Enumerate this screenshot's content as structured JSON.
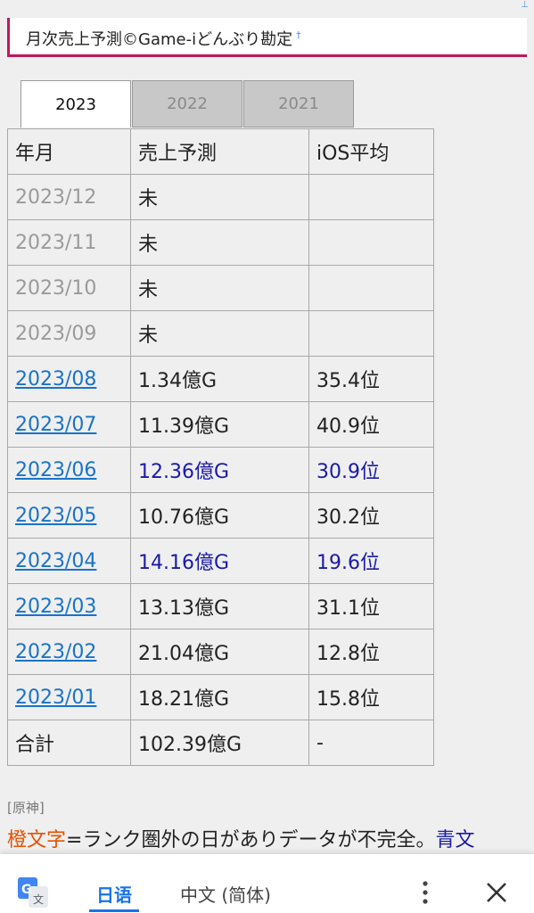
{
  "header": {
    "title": "月次売上予測©Game-iどんぶり勘定",
    "marker": "†"
  },
  "tabs": [
    {
      "label": "2023",
      "active": true
    },
    {
      "label": "2022",
      "active": false
    },
    {
      "label": "2021",
      "active": false
    }
  ],
  "table": {
    "headers": [
      "年月",
      "売上予測",
      "iOS平均"
    ],
    "rows": [
      {
        "month": "2023/12",
        "sales": "未",
        "ios": "",
        "style": "grey"
      },
      {
        "month": "2023/11",
        "sales": "未",
        "ios": "",
        "style": "grey"
      },
      {
        "month": "2023/10",
        "sales": "未",
        "ios": "",
        "style": "grey"
      },
      {
        "month": "2023/09",
        "sales": "未",
        "ios": "",
        "style": "grey"
      },
      {
        "month": "2023/08",
        "sales": "1.34億G",
        "ios": "35.4位",
        "style": "link"
      },
      {
        "month": "2023/07",
        "sales": "11.39億G",
        "ios": "40.9位",
        "style": "link"
      },
      {
        "month": "2023/06",
        "sales": "12.36億G",
        "ios": "30.9位",
        "style": "link-blue"
      },
      {
        "month": "2023/05",
        "sales": "10.76億G",
        "ios": "30.2位",
        "style": "link"
      },
      {
        "month": "2023/04",
        "sales": "14.16億G",
        "ios": "19.6位",
        "style": "link-blue"
      },
      {
        "month": "2023/03",
        "sales": "13.13億G",
        "ios": "31.1位",
        "style": "link"
      },
      {
        "month": "2023/02",
        "sales": "21.04億G",
        "ios": "12.8位",
        "style": "link"
      },
      {
        "month": "2023/01",
        "sales": "18.21億G",
        "ios": "15.8位",
        "style": "link"
      }
    ],
    "total": {
      "label": "合計",
      "sales": "102.39億G",
      "ios": "-"
    }
  },
  "footnote": {
    "tag": "[原神]",
    "orange_text": "橙文字",
    "middle_text": "=ランク圏外の日がありデータが不完全。",
    "blue_text": "青文"
  },
  "translate_bar": {
    "source_lang": "日语",
    "target_lang": "中文 (简体)"
  },
  "colors": {
    "accent_border": "#c2185b",
    "link": "#1a73c8",
    "blue_text": "#1a1aa8",
    "orange_text": "#e65100",
    "translate_active": "#1a73e8"
  },
  "icons": {
    "translate": "google-translate-icon",
    "more": "more-vertical-icon",
    "close": "close-icon"
  }
}
